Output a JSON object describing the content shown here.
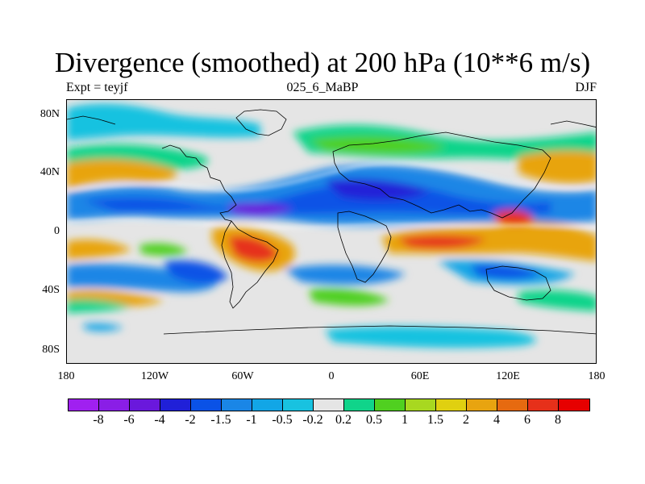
{
  "title": "Divergence (smoothed) at 200 hPa (10**6 m/s)",
  "left_subtitle": "Expt = teyjf",
  "center_subtitle": "025_6_MaBP",
  "right_subtitle": "DJF",
  "lat_labels": [
    "80N",
    "40N",
    "0",
    "40S",
    "80S"
  ],
  "lon_labels": [
    "180",
    "120W",
    "60W",
    "0",
    "60E",
    "120E",
    "180"
  ],
  "colorbar": {
    "colors": [
      "#a020f0",
      "#8a1ee6",
      "#6a18dc",
      "#2020d8",
      "#0a52e6",
      "#1a86e6",
      "#12a6e6",
      "#18c2e0",
      "#e5e5e5",
      "#10d48a",
      "#50d020",
      "#a8d820",
      "#e0d010",
      "#e8a410",
      "#e66a10",
      "#e6301a",
      "#e60000"
    ],
    "labels": [
      "-8",
      "-6",
      "-4",
      "-2",
      "-1.5",
      "-1",
      "-0.5",
      "-0.2",
      "0.2",
      "0.5",
      "1",
      "1.5",
      "2",
      "4",
      "6",
      "8"
    ]
  },
  "colors": {
    "neutral": "#e5e5e5",
    "coast": "#000000",
    "contour_zero": "#ffffff"
  }
}
